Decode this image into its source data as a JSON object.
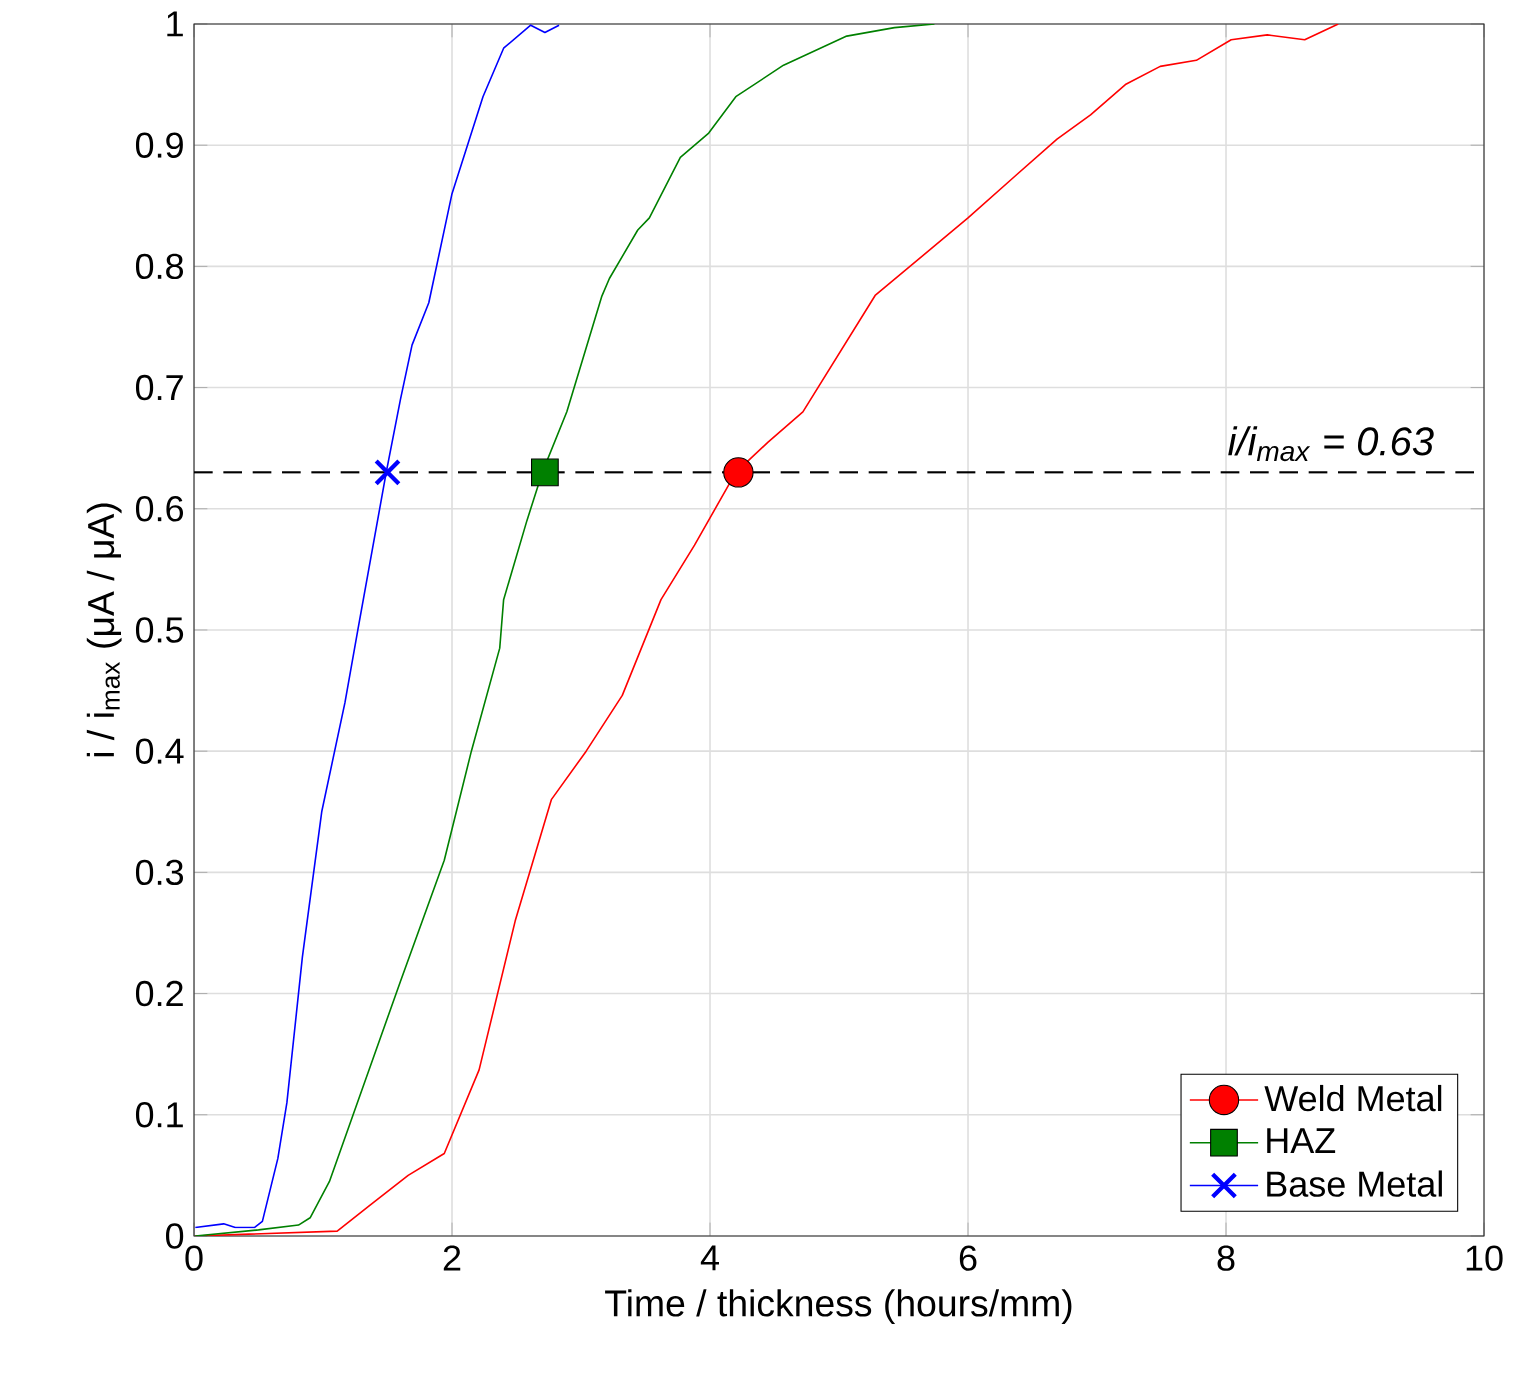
{
  "chart_data": {
    "type": "line",
    "xlabel": "Time / thickness (hours/mm)",
    "ylabel": "i / i$_{max}$ (μA / μA)",
    "xlim": [
      0,
      10
    ],
    "ylim": [
      0,
      1
    ],
    "xticks": [
      0,
      2,
      4,
      6,
      8,
      10
    ],
    "yticks": [
      0,
      0.1,
      0.2,
      0.3,
      0.4,
      0.5,
      0.6,
      0.7,
      0.8,
      0.9,
      1
    ],
    "grid": true,
    "legend": "bottom right",
    "line_style": "solid",
    "series": [
      {
        "color": "#ff0000",
        "x": [
          0.01,
          1.11,
          1.36,
          1.66,
          1.94,
          2.21,
          2.49,
          2.77,
          3.04,
          3.32,
          3.62,
          3.88,
          4.2,
          4.45,
          4.72,
          5.28,
          6.0,
          6.37,
          6.69,
          6.95,
          7.22,
          7.49,
          7.77,
          8.04,
          8.32,
          8.61,
          8.87
        ],
        "values": [
          0,
          0.004,
          0.025,
          0.05,
          0.068,
          0.137,
          0.26,
          0.36,
          0.4,
          0.446,
          0.525,
          0.57,
          0.63,
          0.655,
          0.68,
          0.776,
          0.84,
          0.875,
          0.905,
          0.925,
          0.95,
          0.965,
          0.97,
          0.987,
          0.991,
          0.987,
          1
        ]
      },
      {
        "color": "#008000",
        "x": [
          0.01,
          0.5,
          0.81,
          0.9,
          1.05,
          1.3,
          1.6,
          1.94,
          2.15,
          2.37,
          2.4,
          2.58,
          2.7,
          2.89,
          3.16,
          3.22,
          3.44,
          3.53,
          3.77,
          3.99,
          4.2,
          4.57,
          5.06,
          5.43,
          5.74
        ],
        "values": [
          0,
          0.005,
          0.009,
          0.015,
          0.045,
          0.12,
          0.21,
          0.31,
          0.4,
          0.485,
          0.525,
          0.59,
          0.63,
          0.68,
          0.775,
          0.79,
          0.83,
          0.84,
          0.89,
          0.91,
          0.94,
          0.966,
          0.99,
          0.997,
          1
        ]
      },
      {
        "color": "#0000ff",
        "x": [
          0.01,
          0.23,
          0.32,
          0.47,
          0.53,
          0.65,
          0.72,
          0.84,
          0.99,
          1.17,
          1.27,
          1.49,
          1.6,
          1.69,
          1.82,
          2.0,
          2.24,
          2.4,
          2.61,
          2.72,
          2.83
        ],
        "values": [
          0.007,
          0.01,
          0.007,
          0.007,
          0.012,
          0.064,
          0.11,
          0.23,
          0.35,
          0.44,
          0.5,
          0.63,
          0.69,
          0.735,
          0.77,
          0.86,
          0.94,
          0.98,
          0.999,
          0.993,
          0.999
        ]
      },
      {
        "type": "scatter",
        "name": "Weld Metal",
        "color": "#ff0000",
        "marker": "circle",
        "x": [
          4.22
        ],
        "values": [
          0.63
        ]
      },
      {
        "type": "scatter",
        "name": "HAZ",
        "color": "#008000",
        "marker": "square",
        "x": [
          2.72
        ],
        "values": [
          0.63
        ]
      },
      {
        "type": "scatter",
        "name": "Base Metal",
        "color": "#0000ff",
        "marker": "cross",
        "x": [
          1.5
        ],
        "values": [
          0.63
        ]
      }
    ],
    "ref_lines": [
      {
        "axis": "y",
        "value": 0.63,
        "label": "i/i$_{max}$ = 0.63",
        "color": "#000000",
        "line_style": "dashed"
      }
    ]
  }
}
